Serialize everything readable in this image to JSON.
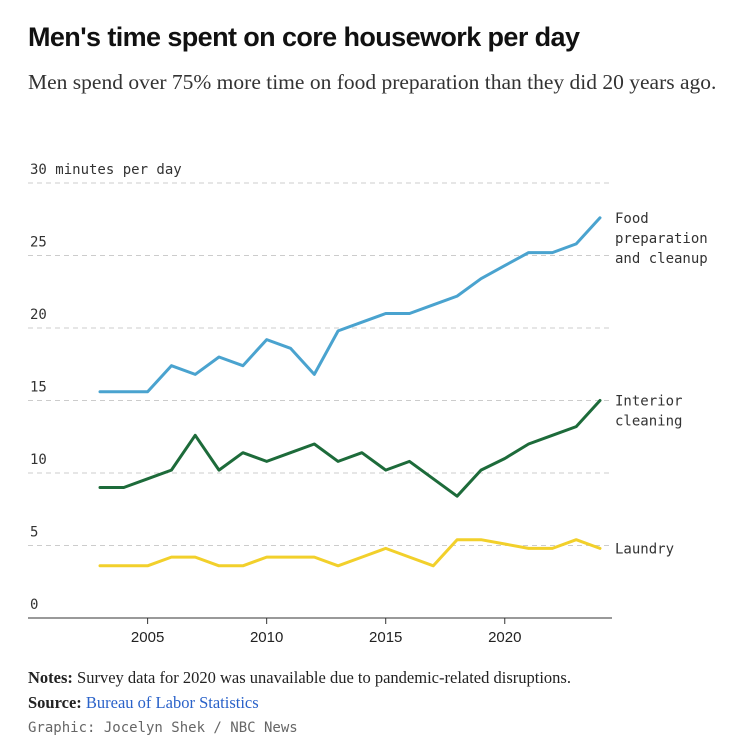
{
  "header": {
    "title": "Men's time spent on core housework per day",
    "subtitle": "Men spend over 75% more time on food preparation than they did 20 years ago."
  },
  "chart_data": {
    "type": "line",
    "ylabel_top": "minutes per day",
    "y_ticks": [
      0,
      5,
      10,
      15,
      20,
      25,
      30
    ],
    "x_ticks": [
      2005,
      2010,
      2015,
      2020
    ],
    "ylim": [
      0,
      30
    ],
    "xlim": [
      2003,
      2024
    ],
    "grid": true,
    "x": [
      2003,
      2004,
      2005,
      2006,
      2007,
      2008,
      2009,
      2010,
      2011,
      2012,
      2013,
      2014,
      2015,
      2016,
      2017,
      2018,
      2019,
      2020,
      2021,
      2022,
      2023,
      2024
    ],
    "series": [
      {
        "name": "Food preparation and cleanup",
        "label_lines": [
          "Food",
          "preparation",
          "and cleanup"
        ],
        "color": "#4aa3cf",
        "values": [
          15.6,
          15.6,
          15.6,
          17.4,
          16.8,
          18.0,
          17.4,
          19.2,
          18.6,
          16.8,
          19.8,
          20.4,
          21.0,
          21.0,
          21.6,
          22.2,
          23.4,
          24.3,
          25.2,
          25.2,
          25.8,
          27.6
        ]
      },
      {
        "name": "Interior cleaning",
        "label_lines": [
          "Interior",
          "cleaning"
        ],
        "color": "#1d6b3a",
        "values": [
          9.0,
          9.0,
          9.6,
          10.2,
          12.6,
          10.2,
          11.4,
          10.8,
          11.4,
          12.0,
          10.8,
          11.4,
          10.2,
          10.8,
          9.6,
          8.4,
          10.2,
          11.0,
          12.0,
          12.6,
          13.2,
          15.0
        ]
      },
      {
        "name": "Laundry",
        "label_lines": [
          "Laundry"
        ],
        "color": "#f2d02b",
        "values": [
          3.6,
          3.6,
          3.6,
          4.2,
          4.2,
          3.6,
          3.6,
          4.2,
          4.2,
          4.2,
          3.6,
          4.2,
          4.8,
          4.2,
          3.6,
          5.4,
          5.4,
          5.1,
          4.8,
          4.8,
          5.4,
          4.8
        ]
      }
    ]
  },
  "footer": {
    "notes_label": "Notes:",
    "notes_text": " Survey data for 2020 was unavailable due to pandemic-related disruptions.",
    "source_label": "Source:",
    "source_link": "Bureau of Labor Statistics",
    "credit": "Graphic: Jocelyn Shek / NBC News"
  }
}
